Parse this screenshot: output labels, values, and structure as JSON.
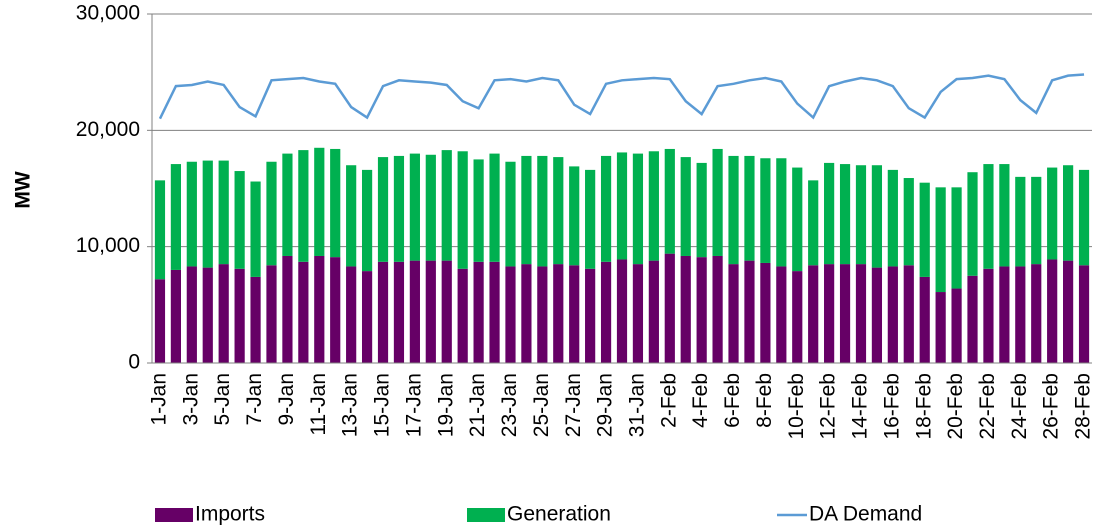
{
  "chart_data": {
    "type": "stacked-bar-line",
    "y_label": "MW",
    "categories": [
      "1-Jan",
      null,
      "3-Jan",
      null,
      "5-Jan",
      null,
      "7-Jan",
      null,
      "9-Jan",
      null,
      "11-Jan",
      null,
      "13-Jan",
      null,
      "15-Jan",
      null,
      "17-Jan",
      null,
      "19-Jan",
      null,
      "21-Jan",
      null,
      "23-Jan",
      null,
      "25-Jan",
      null,
      "27-Jan",
      null,
      "29-Jan",
      null,
      "31-Jan",
      null,
      "2-Feb",
      null,
      "4-Feb",
      null,
      "6-Feb",
      null,
      "8-Feb",
      null,
      "10-Feb",
      null,
      "12-Feb",
      null,
      "14-Feb",
      null,
      "16-Feb",
      null,
      "18-Feb",
      null,
      "20-Feb",
      null,
      "22-Feb",
      null,
      "24-Feb",
      null,
      "26-Feb",
      null,
      "28-Feb"
    ],
    "series": [
      {
        "name": "Imports",
        "kind": "bar",
        "color": "#660066",
        "values": [
          7200,
          8000,
          8300,
          8200,
          8500,
          8100,
          7400,
          8400,
          9200,
          8700,
          9200,
          9100,
          8300,
          7900,
          8700,
          8700,
          8800,
          8800,
          8800,
          8100,
          8700,
          8700,
          8300,
          8500,
          8300,
          8500,
          8400,
          8100,
          8700,
          8900,
          8500,
          8800,
          9400,
          9200,
          9100,
          9200,
          8500,
          8800,
          8600,
          8300,
          7900,
          8400,
          8500,
          8500,
          8500,
          8200,
          8300,
          8400,
          7400,
          6100,
          6400,
          7500,
          8100,
          8300,
          8300,
          8500,
          8900,
          8800,
          8400
        ]
      },
      {
        "name": "Generation",
        "kind": "bar",
        "color": "#00b050",
        "values": [
          8500,
          9100,
          9000,
          9200,
          8900,
          8400,
          8200,
          8900,
          8800,
          9600,
          9300,
          9300,
          8700,
          8700,
          9000,
          9100,
          9200,
          9100,
          9500,
          10100,
          8800,
          9300,
          9000,
          9300,
          9500,
          9200,
          8500,
          8500,
          9100,
          9200,
          9500,
          9400,
          9000,
          8500,
          8100,
          9200,
          9300,
          9000,
          9000,
          9300,
          8900,
          7300,
          8700,
          8600,
          8500,
          8800,
          8300,
          7500,
          8100,
          9000,
          8700,
          8900,
          9000,
          8800,
          7700,
          7500,
          7900,
          8200,
          8200
        ]
      },
      {
        "name": "DA Demand",
        "kind": "line",
        "color": "#5b9bd5",
        "values": [
          21000,
          23800,
          23900,
          24200,
          23900,
          22000,
          21200,
          24300,
          24400,
          24500,
          24200,
          24000,
          22000,
          21100,
          23800,
          24300,
          24200,
          24100,
          23900,
          22500,
          21900,
          24300,
          24400,
          24200,
          24500,
          24300,
          22200,
          21400,
          24000,
          24300,
          24400,
          24500,
          24400,
          22500,
          21400,
          23800,
          24000,
          24300,
          24500,
          24200,
          22300,
          21100,
          23800,
          24200,
          24500,
          24300,
          23800,
          21900,
          21100,
          23300,
          24400,
          24500,
          24700,
          24400,
          22600,
          21500,
          24300,
          24700,
          24800
        ]
      }
    ],
    "ylim": [
      0,
      30000
    ],
    "yticks": [
      0,
      {
        "value": 10000,
        "label": "10,000"
      },
      {
        "value": 20000,
        "label": "20,000"
      },
      {
        "value": 30000,
        "label": "30,000"
      }
    ],
    "grid": true,
    "legend": "bottom"
  }
}
